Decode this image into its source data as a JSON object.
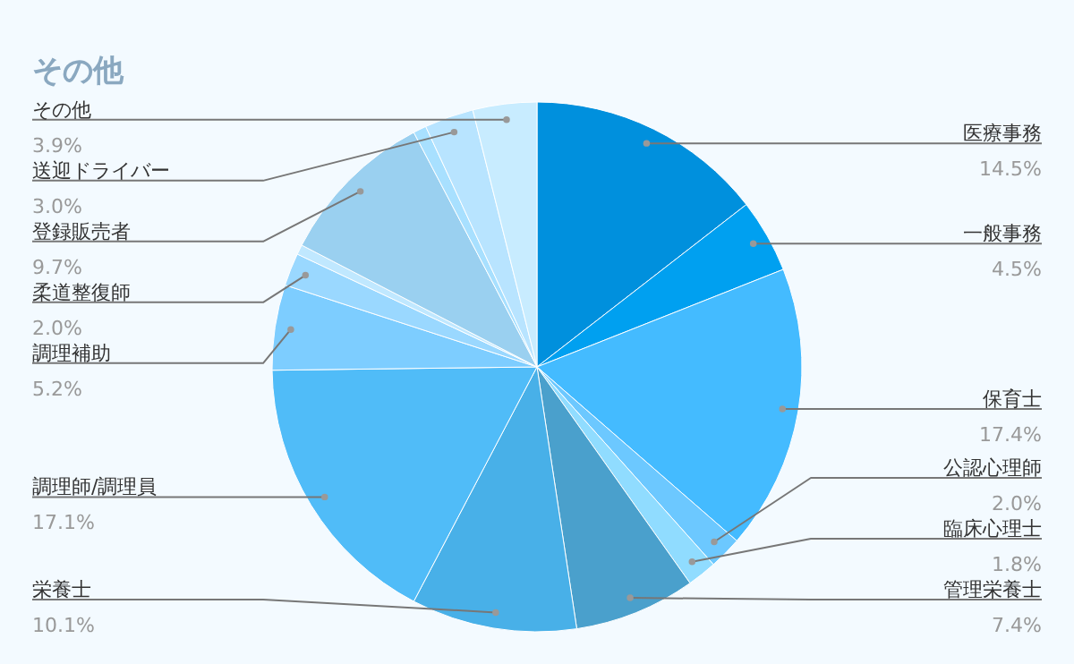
{
  "chart_data": {
    "type": "pie",
    "title": "その他",
    "categories": [
      "医療事務",
      "一般事務",
      "保育士",
      "公認心理師",
      "臨床心理士",
      "管理栄養士",
      "栄養士",
      "調理師/調理員",
      "調理補助",
      "柔道整復師",
      null,
      "登録販売者",
      null,
      "送迎ドライバー",
      "その他"
    ],
    "values": [
      14.5,
      4.5,
      17.4,
      2.0,
      1.8,
      7.4,
      10.1,
      17.1,
      5.2,
      2.0,
      0.6,
      9.7,
      0.8,
      3.0,
      3.9
    ],
    "value_labels": [
      "14.5%",
      "4.5%",
      "17.4%",
      "2.0%",
      "1.8%",
      "7.4%",
      "10.1%",
      "17.1%",
      "5.2%",
      "2.0%",
      null,
      "9.7%",
      null,
      "3.0%",
      "3.9%"
    ],
    "colors": [
      "#0090dd",
      "#00a0f0",
      "#44bbff",
      "#6cc8ff",
      "#90dcff",
      "#4aa0cc",
      "#48b0e8",
      "#50bcf8",
      "#7dcdff",
      "#9ad8ff",
      "#c0e8ff",
      "#9ad0f0",
      "#a8e0ff",
      "#b8e4ff",
      "#c8ecff"
    ]
  }
}
